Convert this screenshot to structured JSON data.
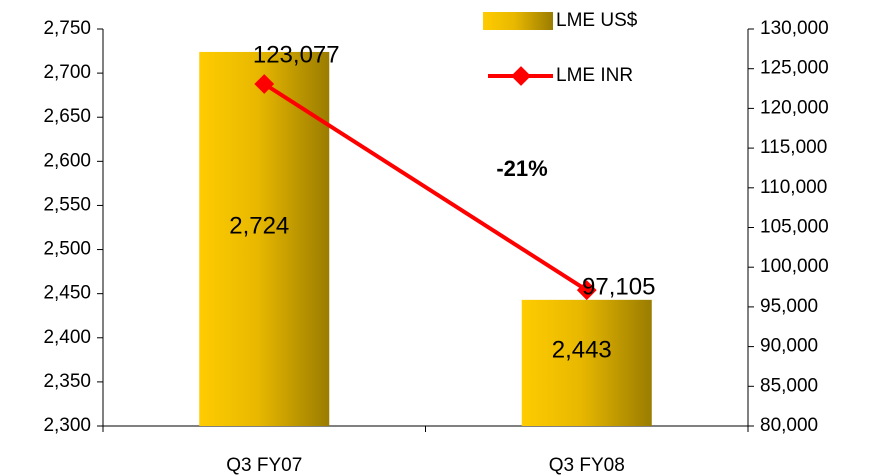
{
  "chart_data": {
    "type": "bar",
    "categories": [
      "Q3 FY07",
      "Q3 FY08"
    ],
    "series": [
      {
        "name": "LME US$",
        "type": "bar",
        "axis": "y",
        "color": "#f5c800",
        "values": [
          2724,
          2443
        ],
        "value_labels": [
          "2,724",
          "2,443"
        ]
      },
      {
        "name": "LME INR",
        "type": "line",
        "axis": "y2",
        "color": "#ff0000",
        "values": [
          123077,
          97105
        ],
        "value_labels": [
          "123,077",
          "97,105"
        ]
      }
    ],
    "annotations": [
      "-21%"
    ],
    "ylim": [
      2300,
      2750
    ],
    "yticks": [
      {
        "value": 2300,
        "label": "2,300"
      },
      {
        "value": 2350,
        "label": "2,350"
      },
      {
        "value": 2400,
        "label": "2,400"
      },
      {
        "value": 2450,
        "label": "2,450"
      },
      {
        "value": 2500,
        "label": "2,500"
      },
      {
        "value": 2550,
        "label": "2,550"
      },
      {
        "value": 2600,
        "label": "2,600"
      },
      {
        "value": 2650,
        "label": "2,650"
      },
      {
        "value": 2700,
        "label": "2,700"
      },
      {
        "value": 2750,
        "label": "2,750"
      }
    ],
    "y2lim": [
      80000,
      130000
    ],
    "y2ticks": [
      {
        "value": 80000,
        "label": "80,000"
      },
      {
        "value": 85000,
        "label": "85,000"
      },
      {
        "value": 90000,
        "label": "90,000"
      },
      {
        "value": 95000,
        "label": "95,000"
      },
      {
        "value": 100000,
        "label": "100,000"
      },
      {
        "value": 105000,
        "label": "105,000"
      },
      {
        "value": 110000,
        "label": "110,000"
      },
      {
        "value": 115000,
        "label": "115,000"
      },
      {
        "value": 120000,
        "label": "120,000"
      },
      {
        "value": 125000,
        "label": "125,000"
      },
      {
        "value": 130000,
        "label": "130,000"
      }
    ]
  }
}
